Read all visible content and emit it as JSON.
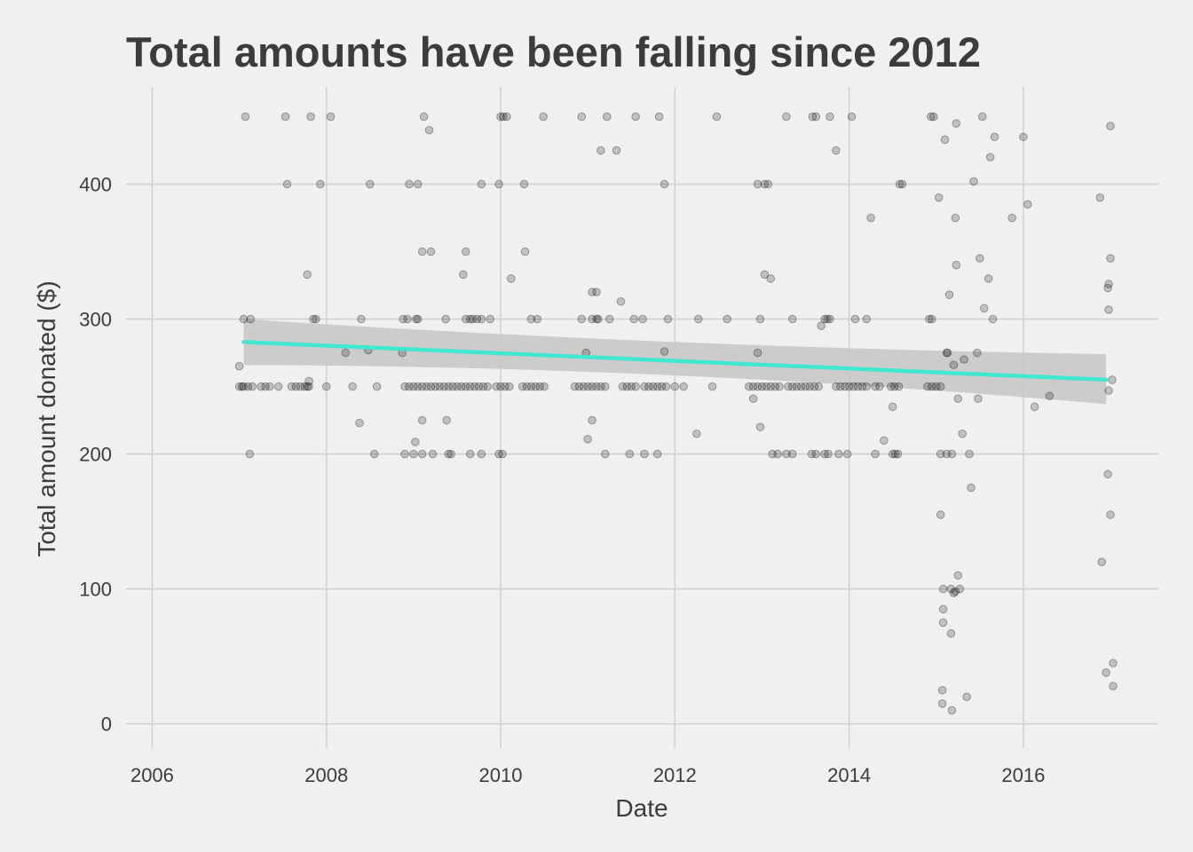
{
  "colors": {
    "background": "#f0f0f0",
    "grid": "#d2d2d2",
    "text": "#3c3c3c",
    "trend_line": "#40e8d0",
    "confidence_band": "#c8c8c8",
    "points": "#000000"
  },
  "chart_data": {
    "type": "scatter",
    "title": "Total amounts have been falling since 2012",
    "xlabel": "Date",
    "ylabel": "Total amount donated ($)",
    "xlim": [
      2005.7,
      2017.55
    ],
    "ylim": [
      -18,
      472
    ],
    "x_ticks": [
      2006,
      2008,
      2010,
      2012,
      2014,
      2016
    ],
    "y_ticks": [
      0,
      100,
      200,
      300,
      400
    ],
    "grid": true,
    "legend": "none",
    "trend": {
      "x": [
        2007.05,
        2016.95
      ],
      "y": [
        283,
        255
      ],
      "ci_lower": [
        266,
        237
      ],
      "ci_upper": [
        300,
        274
      ],
      "ci_mid": {
        "x": 2012.0,
        "lower": 265,
        "upper": 279
      }
    },
    "points": [
      [
        2007.0,
        250
      ],
      [
        2007.03,
        250
      ],
      [
        2007.05,
        250
      ],
      [
        2007.1,
        250
      ],
      [
        2007.15,
        250
      ],
      [
        2007.25,
        250
      ],
      [
        2007.3,
        250
      ],
      [
        2007.35,
        250
      ],
      [
        2007.45,
        250
      ],
      [
        2007.6,
        250
      ],
      [
        2007.65,
        250
      ],
      [
        2007.7,
        250
      ],
      [
        2007.75,
        250
      ],
      [
        2007.78,
        250
      ],
      [
        2007.8,
        250
      ],
      [
        2008.0,
        250
      ],
      [
        2008.3,
        250
      ],
      [
        2008.58,
        250
      ],
      [
        2008.9,
        250
      ],
      [
        2008.95,
        250
      ],
      [
        2009.0,
        250
      ],
      [
        2009.05,
        250
      ],
      [
        2009.1,
        250
      ],
      [
        2009.15,
        250
      ],
      [
        2009.2,
        250
      ],
      [
        2009.25,
        250
      ],
      [
        2009.3,
        250
      ],
      [
        2009.35,
        250
      ],
      [
        2009.4,
        250
      ],
      [
        2009.45,
        250
      ],
      [
        2009.5,
        250
      ],
      [
        2009.55,
        250
      ],
      [
        2009.6,
        250
      ],
      [
        2009.65,
        250
      ],
      [
        2009.7,
        250
      ],
      [
        2009.75,
        250
      ],
      [
        2009.8,
        250
      ],
      [
        2009.85,
        250
      ],
      [
        2009.95,
        250
      ],
      [
        2010.0,
        250
      ],
      [
        2010.05,
        250
      ],
      [
        2010.1,
        250
      ],
      [
        2010.25,
        250
      ],
      [
        2010.3,
        250
      ],
      [
        2010.35,
        250
      ],
      [
        2010.4,
        250
      ],
      [
        2010.45,
        250
      ],
      [
        2010.5,
        250
      ],
      [
        2010.85,
        250
      ],
      [
        2010.9,
        250
      ],
      [
        2010.95,
        250
      ],
      [
        2011.0,
        250
      ],
      [
        2011.05,
        250
      ],
      [
        2011.1,
        250
      ],
      [
        2011.15,
        250
      ],
      [
        2011.2,
        250
      ],
      [
        2011.4,
        250
      ],
      [
        2011.45,
        250
      ],
      [
        2011.5,
        250
      ],
      [
        2011.55,
        250
      ],
      [
        2011.65,
        250
      ],
      [
        2011.7,
        250
      ],
      [
        2011.75,
        250
      ],
      [
        2011.8,
        250
      ],
      [
        2011.85,
        250
      ],
      [
        2011.9,
        250
      ],
      [
        2012.0,
        250
      ],
      [
        2012.1,
        250
      ],
      [
        2012.43,
        250
      ],
      [
        2012.85,
        250
      ],
      [
        2012.9,
        250
      ],
      [
        2012.95,
        250
      ],
      [
        2013.0,
        250
      ],
      [
        2013.05,
        250
      ],
      [
        2013.1,
        250
      ],
      [
        2013.15,
        250
      ],
      [
        2013.2,
        250
      ],
      [
        2013.3,
        250
      ],
      [
        2013.35,
        250
      ],
      [
        2013.4,
        250
      ],
      [
        2013.45,
        250
      ],
      [
        2013.5,
        250
      ],
      [
        2013.55,
        250
      ],
      [
        2013.6,
        250
      ],
      [
        2013.65,
        250
      ],
      [
        2013.85,
        250
      ],
      [
        2013.9,
        250
      ],
      [
        2013.95,
        250
      ],
      [
        2014.0,
        250
      ],
      [
        2014.05,
        250
      ],
      [
        2014.1,
        250
      ],
      [
        2014.15,
        250
      ],
      [
        2014.2,
        250
      ],
      [
        2014.3,
        250
      ],
      [
        2014.35,
        250
      ],
      [
        2014.48,
        250
      ],
      [
        2014.52,
        250
      ],
      [
        2014.57,
        250
      ],
      [
        2014.9,
        250
      ],
      [
        2014.95,
        250
      ],
      [
        2015.0,
        250
      ],
      [
        2015.05,
        250
      ],
      [
        2007.12,
        200
      ],
      [
        2008.55,
        200
      ],
      [
        2008.9,
        200
      ],
      [
        2009.0,
        200
      ],
      [
        2009.1,
        200
      ],
      [
        2009.22,
        200
      ],
      [
        2009.4,
        200
      ],
      [
        2009.43,
        200
      ],
      [
        2009.65,
        200
      ],
      [
        2009.78,
        200
      ],
      [
        2009.98,
        200
      ],
      [
        2010.02,
        200
      ],
      [
        2011.2,
        200
      ],
      [
        2011.48,
        200
      ],
      [
        2011.65,
        200
      ],
      [
        2011.8,
        200
      ],
      [
        2013.12,
        200
      ],
      [
        2013.18,
        200
      ],
      [
        2013.28,
        200
      ],
      [
        2013.35,
        200
      ],
      [
        2013.57,
        200
      ],
      [
        2013.62,
        200
      ],
      [
        2013.72,
        200
      ],
      [
        2013.76,
        200
      ],
      [
        2013.88,
        200
      ],
      [
        2013.98,
        200
      ],
      [
        2014.3,
        200
      ],
      [
        2014.5,
        200
      ],
      [
        2014.53,
        200
      ],
      [
        2014.56,
        200
      ],
      [
        2015.05,
        200
      ],
      [
        2015.12,
        200
      ],
      [
        2015.18,
        200
      ],
      [
        2015.38,
        200
      ],
      [
        2007.05,
        300
      ],
      [
        2007.13,
        300
      ],
      [
        2007.85,
        300
      ],
      [
        2007.88,
        300
      ],
      [
        2008.4,
        300
      ],
      [
        2008.88,
        300
      ],
      [
        2008.93,
        300
      ],
      [
        2009.03,
        300
      ],
      [
        2009.05,
        300
      ],
      [
        2009.37,
        300
      ],
      [
        2009.6,
        300
      ],
      [
        2009.65,
        300
      ],
      [
        2009.68,
        300
      ],
      [
        2009.73,
        300
      ],
      [
        2009.78,
        300
      ],
      [
        2009.88,
        300
      ],
      [
        2010.35,
        300
      ],
      [
        2010.42,
        300
      ],
      [
        2010.93,
        300
      ],
      [
        2011.05,
        300
      ],
      [
        2011.1,
        300
      ],
      [
        2011.25,
        300
      ],
      [
        2011.53,
        300
      ],
      [
        2011.63,
        300
      ],
      [
        2011.92,
        300
      ],
      [
        2012.27,
        300
      ],
      [
        2012.6,
        300
      ],
      [
        2012.98,
        300
      ],
      [
        2013.35,
        300
      ],
      [
        2013.72,
        300
      ],
      [
        2013.75,
        300
      ],
      [
        2013.78,
        300
      ],
      [
        2014.07,
        300
      ],
      [
        2014.2,
        300
      ],
      [
        2014.92,
        300
      ],
      [
        2007.07,
        450
      ],
      [
        2007.53,
        450
      ],
      [
        2007.82,
        450
      ],
      [
        2008.05,
        450
      ],
      [
        2009.12,
        450
      ],
      [
        2010.0,
        450
      ],
      [
        2010.03,
        450
      ],
      [
        2010.07,
        450
      ],
      [
        2010.49,
        450
      ],
      [
        2010.93,
        450
      ],
      [
        2011.22,
        450
      ],
      [
        2011.55,
        450
      ],
      [
        2011.82,
        450
      ],
      [
        2012.48,
        450
      ],
      [
        2013.28,
        450
      ],
      [
        2013.58,
        450
      ],
      [
        2013.62,
        450
      ],
      [
        2013.78,
        450
      ],
      [
        2014.03,
        450
      ],
      [
        2014.94,
        450
      ],
      [
        2014.97,
        450
      ],
      [
        2015.53,
        450
      ],
      [
        2007.55,
        400
      ],
      [
        2007.93,
        400
      ],
      [
        2008.5,
        400
      ],
      [
        2008.95,
        400
      ],
      [
        2009.05,
        400
      ],
      [
        2009.78,
        400
      ],
      [
        2009.98,
        400
      ],
      [
        2010.27,
        400
      ],
      [
        2011.88,
        400
      ],
      [
        2012.95,
        400
      ],
      [
        2013.03,
        400
      ],
      [
        2013.07,
        400
      ],
      [
        2014.58,
        400
      ],
      [
        2014.61,
        400
      ],
      [
        2007.0,
        265
      ],
      [
        2007.78,
        333
      ],
      [
        2007.8,
        254
      ],
      [
        2008.22,
        275
      ],
      [
        2008.38,
        223
      ],
      [
        2008.48,
        277
      ],
      [
        2008.87,
        275
      ],
      [
        2009.02,
        209
      ],
      [
        2009.1,
        225
      ],
      [
        2009.1,
        350
      ],
      [
        2009.18,
        440
      ],
      [
        2009.2,
        350
      ],
      [
        2009.38,
        225
      ],
      [
        2009.57,
        333
      ],
      [
        2009.6,
        350
      ],
      [
        2010.12,
        330
      ],
      [
        2010.28,
        350
      ],
      [
        2010.98,
        275
      ],
      [
        2011.0,
        211
      ],
      [
        2011.05,
        225
      ],
      [
        2011.05,
        320
      ],
      [
        2011.1,
        320
      ],
      [
        2011.12,
        300
      ],
      [
        2011.15,
        425
      ],
      [
        2011.33,
        425
      ],
      [
        2011.38,
        313
      ],
      [
        2011.88,
        276
      ],
      [
        2012.25,
        215
      ],
      [
        2012.9,
        241
      ],
      [
        2012.95,
        275
      ],
      [
        2012.98,
        220
      ],
      [
        2013.03,
        333
      ],
      [
        2013.1,
        330
      ],
      [
        2013.68,
        295
      ],
      [
        2013.85,
        425
      ],
      [
        2014.25,
        375
      ],
      [
        2014.4,
        210
      ],
      [
        2014.5,
        235
      ],
      [
        2014.95,
        300
      ],
      [
        2015.03,
        390
      ],
      [
        2015.05,
        155
      ],
      [
        2015.07,
        25
      ],
      [
        2015.07,
        15
      ],
      [
        2015.08,
        85
      ],
      [
        2015.08,
        100
      ],
      [
        2015.08,
        75
      ],
      [
        2015.1,
        433
      ],
      [
        2015.12,
        275
      ],
      [
        2015.13,
        275
      ],
      [
        2015.15,
        318
      ],
      [
        2015.17,
        67
      ],
      [
        2015.17,
        100
      ],
      [
        2015.18,
        10
      ],
      [
        2015.2,
        266
      ],
      [
        2015.2,
        97
      ],
      [
        2015.22,
        98
      ],
      [
        2015.22,
        375
      ],
      [
        2015.23,
        340
      ],
      [
        2015.23,
        445
      ],
      [
        2015.25,
        241
      ],
      [
        2015.25,
        110
      ],
      [
        2015.27,
        100
      ],
      [
        2015.3,
        215
      ],
      [
        2015.32,
        270
      ],
      [
        2015.35,
        20
      ],
      [
        2015.4,
        175
      ],
      [
        2015.43,
        402
      ],
      [
        2015.47,
        275
      ],
      [
        2015.48,
        241
      ],
      [
        2015.5,
        345
      ],
      [
        2015.55,
        308
      ],
      [
        2015.6,
        330
      ],
      [
        2015.62,
        420
      ],
      [
        2015.65,
        300
      ],
      [
        2015.67,
        435
      ],
      [
        2015.87,
        375
      ],
      [
        2016.0,
        435
      ],
      [
        2016.05,
        385
      ],
      [
        2016.13,
        235
      ],
      [
        2016.3,
        243
      ],
      [
        2016.88,
        390
      ],
      [
        2016.9,
        120
      ],
      [
        2016.95,
        38
      ],
      [
        2016.97,
        185
      ],
      [
        2016.97,
        323
      ],
      [
        2016.98,
        326
      ],
      [
        2016.98,
        307
      ],
      [
        2016.98,
        247
      ],
      [
        2017.0,
        155
      ],
      [
        2017.0,
        345
      ],
      [
        2017.0,
        443
      ],
      [
        2017.02,
        255
      ],
      [
        2017.03,
        45
      ],
      [
        2017.03,
        28
      ]
    ]
  }
}
